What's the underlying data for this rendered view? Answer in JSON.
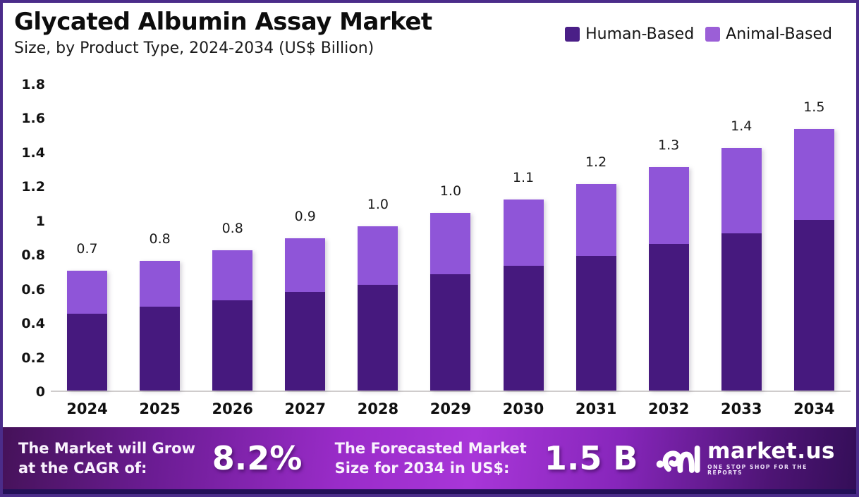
{
  "header": {
    "title": "Glycated Albumin Assay Market",
    "subtitle": "Size, by Product Type, 2024-2034 (US$ Billion)"
  },
  "chart_data": {
    "type": "bar",
    "stacked": true,
    "title": "Glycated Albumin Assay Market Size, by Product Type, 2024-2034 (US$ Billion)",
    "categories": [
      "2024",
      "2025",
      "2026",
      "2027",
      "2028",
      "2029",
      "2030",
      "2031",
      "2032",
      "2033",
      "2034"
    ],
    "series": [
      {
        "name": "Human-Based",
        "color": "#46197e",
        "values": [
          0.45,
          0.49,
          0.53,
          0.58,
          0.62,
          0.68,
          0.73,
          0.79,
          0.86,
          0.92,
          1.0
        ]
      },
      {
        "name": "Animal-Based",
        "color": "#8f55d8",
        "values": [
          0.25,
          0.27,
          0.29,
          0.31,
          0.34,
          0.36,
          0.39,
          0.42,
          0.45,
          0.5,
          0.53
        ]
      }
    ],
    "total_labels": [
      "0.7",
      "0.8",
      "0.8",
      "0.9",
      "1.0",
      "1.0",
      "1.1",
      "1.2",
      "1.3",
      "1.4",
      "1.5"
    ],
    "xlabel": "",
    "ylabel": "",
    "ylim": [
      0,
      1.8
    ],
    "yticks": [
      "1.8",
      "1.6",
      "1.4",
      "1.2",
      "1",
      "0.8",
      "0.6",
      "0.4",
      "0.2",
      "0"
    ],
    "grid": false,
    "legend_position": "top-right"
  },
  "legend": {
    "items": [
      {
        "label": "Human-Based",
        "color": "#4a1f87"
      },
      {
        "label": "Animal-Based",
        "color": "#9b5fd7"
      }
    ]
  },
  "footer": {
    "cagr_label_line1": "The Market will Grow",
    "cagr_label_line2": "at the CAGR of:",
    "cagr_value": "8.2%",
    "forecast_label_line1": "The Forecasted Market",
    "forecast_label_line2": "Size for 2034 in US$:",
    "forecast_value": "1.5 B",
    "brand": {
      "name": "market.us",
      "tagline": "ONE STOP SHOP FOR THE REPORTS",
      "logo_icon": "marketus-squiggle-mark"
    }
  },
  "colors": {
    "frame_border": "#4b2c8a",
    "human_based_bar": "#46197e",
    "animal_based_bar": "#8f55d8",
    "banner_bright": "#a836d8",
    "banner_dark": "#451259",
    "axis_line": "#cfcccc",
    "text": "#111111"
  }
}
